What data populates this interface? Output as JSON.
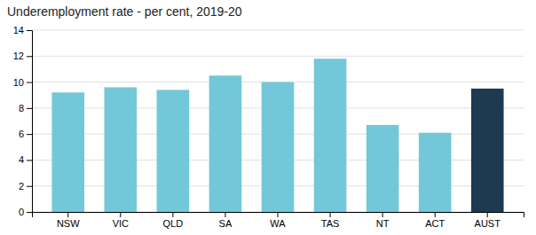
{
  "chart_data": {
    "type": "bar",
    "title": "Underemployment rate - per cent, 2019-20",
    "categories": [
      "NSW",
      "VIC",
      "QLD",
      "SA",
      "WA",
      "TAS",
      "NT",
      "ACT",
      "AUST"
    ],
    "values": [
      9.2,
      9.6,
      9.4,
      10.5,
      10.0,
      11.8,
      6.7,
      6.1,
      9.5
    ],
    "colors": [
      "#72C8D8",
      "#72C8D8",
      "#72C8D8",
      "#72C8D8",
      "#72C8D8",
      "#72C8D8",
      "#72C8D8",
      "#72C8D8",
      "#1C3A52"
    ],
    "ylim": [
      0,
      14
    ],
    "yticks": [
      0,
      2,
      4,
      6,
      8,
      10,
      12,
      14
    ],
    "grid": true
  }
}
